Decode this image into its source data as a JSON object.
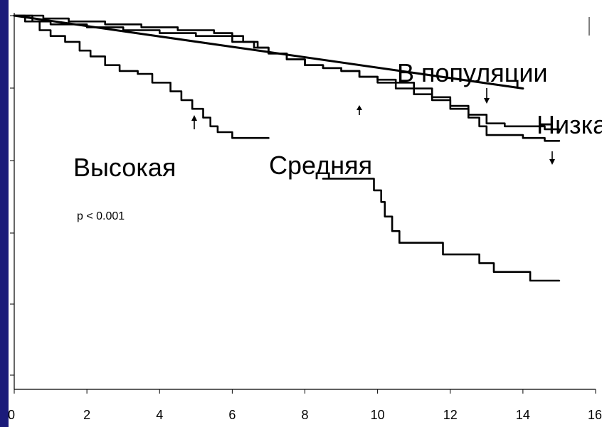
{
  "chart_data": {
    "type": "line",
    "title": "",
    "xlabel": "",
    "ylabel": "",
    "xlim": [
      0,
      16
    ],
    "ylim": [
      0,
      1
    ],
    "x_ticks": [
      "0",
      "2",
      "4",
      "6",
      "8",
      "10",
      "12",
      "14",
      "16"
    ],
    "grid": false,
    "legend": "none",
    "series": [
      {
        "key": "high",
        "label": "Высокая",
        "step": true,
        "points": [
          [
            0,
            1.0
          ],
          [
            0.3,
            0.99
          ],
          [
            0.7,
            0.975
          ],
          [
            1.0,
            0.965
          ],
          [
            1.4,
            0.955
          ],
          [
            1.8,
            0.94
          ],
          [
            2.1,
            0.93
          ],
          [
            2.5,
            0.915
          ],
          [
            2.9,
            0.905
          ],
          [
            3.4,
            0.9
          ],
          [
            3.8,
            0.885
          ],
          [
            4.3,
            0.87
          ],
          [
            4.6,
            0.855
          ],
          [
            4.9,
            0.84
          ],
          [
            5.2,
            0.825
          ],
          [
            5.4,
            0.81
          ],
          [
            5.6,
            0.8
          ],
          [
            6.0,
            0.79
          ],
          [
            6.6,
            0.79
          ],
          [
            7.0,
            0.79
          ]
        ]
      },
      {
        "key": "high_late",
        "label": "Высокая",
        "step": true,
        "points": [
          [
            8.5,
            0.72
          ],
          [
            9.3,
            0.72
          ],
          [
            9.6,
            0.72
          ],
          [
            9.8,
            0.72
          ],
          [
            9.9,
            0.7
          ],
          [
            10.1,
            0.68
          ],
          [
            10.2,
            0.655
          ],
          [
            10.4,
            0.63
          ],
          [
            10.6,
            0.61
          ],
          [
            11.0,
            0.61
          ],
          [
            11.7,
            0.61
          ],
          [
            11.8,
            0.59
          ],
          [
            12.5,
            0.59
          ],
          [
            12.8,
            0.575
          ],
          [
            13.2,
            0.56
          ],
          [
            13.8,
            0.56
          ],
          [
            14.2,
            0.545
          ],
          [
            14.5,
            0.545
          ],
          [
            15.0,
            0.545
          ]
        ]
      },
      {
        "key": "medium",
        "label": "Средняя",
        "step": true,
        "points": [
          [
            0,
            1.0
          ],
          [
            0.5,
            0.99
          ],
          [
            1.0,
            0.985
          ],
          [
            2.0,
            0.98
          ],
          [
            3.0,
            0.975
          ],
          [
            4.0,
            0.97
          ],
          [
            5.0,
            0.965
          ],
          [
            6.0,
            0.955
          ],
          [
            6.6,
            0.945
          ],
          [
            7.0,
            0.935
          ],
          [
            7.5,
            0.925
          ],
          [
            8.0,
            0.915
          ],
          [
            8.5,
            0.91
          ],
          [
            9.0,
            0.905
          ],
          [
            9.5,
            0.895
          ],
          [
            10.0,
            0.89
          ],
          [
            10.5,
            0.885
          ],
          [
            11.0,
            0.875
          ],
          [
            11.5,
            0.86
          ],
          [
            12.0,
            0.845
          ],
          [
            12.5,
            0.825
          ],
          [
            12.8,
            0.81
          ],
          [
            13.0,
            0.795
          ],
          [
            13.5,
            0.795
          ],
          [
            14.0,
            0.79
          ],
          [
            14.6,
            0.785
          ],
          [
            15.0,
            0.785
          ]
        ]
      },
      {
        "key": "low",
        "label": "Низкая",
        "step": true,
        "points": [
          [
            0,
            1.0
          ],
          [
            0.8,
            0.995
          ],
          [
            1.5,
            0.99
          ],
          [
            2.5,
            0.985
          ],
          [
            3.5,
            0.98
          ],
          [
            4.5,
            0.975
          ],
          [
            5.5,
            0.97
          ],
          [
            6.0,
            0.965
          ],
          [
            6.3,
            0.955
          ],
          [
            6.7,
            0.945
          ],
          [
            7.0,
            0.935
          ],
          [
            7.5,
            0.925
          ],
          [
            8.0,
            0.915
          ],
          [
            8.5,
            0.91
          ],
          [
            9.0,
            0.905
          ],
          [
            9.5,
            0.895
          ],
          [
            10.0,
            0.885
          ],
          [
            10.5,
            0.875
          ],
          [
            11.0,
            0.865
          ],
          [
            11.5,
            0.855
          ],
          [
            12.0,
            0.84
          ],
          [
            12.5,
            0.83
          ],
          [
            13.0,
            0.815
          ],
          [
            13.5,
            0.81
          ],
          [
            14.0,
            0.81
          ],
          [
            14.6,
            0.805
          ],
          [
            15.0,
            0.805
          ]
        ]
      },
      {
        "key": "population",
        "label": "В популяции",
        "step": false,
        "points": [
          [
            0,
            1.0
          ],
          [
            14.0,
            0.875
          ]
        ]
      }
    ],
    "annotations": {
      "population_label": "В популяции",
      "low_label": "Низкая",
      "medium_label": "Средняя",
      "high_label": "Высокая",
      "p_value": "p < 0.001"
    }
  }
}
